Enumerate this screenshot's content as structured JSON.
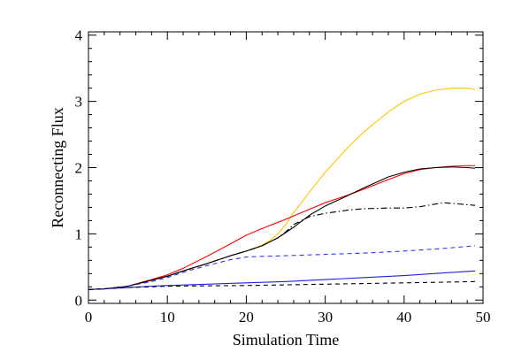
{
  "chart_data": {
    "type": "line",
    "xlabel": "Simulation Time",
    "ylabel": "Reconnecting Flux",
    "xlim": [
      0,
      50
    ],
    "ylim": [
      -0.05,
      4.05
    ],
    "x_ticks": [
      0,
      10,
      20,
      30,
      40,
      50
    ],
    "y_ticks": [
      0,
      1,
      2,
      3,
      4
    ],
    "x_minor_step": 2,
    "y_minor_step": 0.2,
    "grid": false,
    "legend": "none",
    "series": [
      {
        "color": "#FFC400",
        "dash": "solid",
        "x": [
          0,
          2,
          5,
          8,
          10,
          12,
          15,
          18,
          20,
          22,
          23,
          24,
          25,
          26,
          28,
          30,
          33,
          35,
          38,
          40,
          42,
          44,
          46,
          48,
          49
        ],
        "y": [
          0.16,
          0.17,
          0.21,
          0.3,
          0.36,
          0.44,
          0.55,
          0.67,
          0.74,
          0.83,
          0.9,
          1.0,
          1.14,
          1.32,
          1.63,
          1.93,
          2.32,
          2.55,
          2.84,
          3.0,
          3.11,
          3.17,
          3.2,
          3.2,
          3.18
        ]
      },
      {
        "color": "#FF0000",
        "dash": "solid",
        "x": [
          0,
          2,
          5,
          8,
          10,
          12,
          15,
          18,
          20,
          22,
          25,
          28,
          30,
          33,
          35,
          38,
          40,
          42,
          44,
          46,
          48,
          49
        ],
        "y": [
          0.16,
          0.17,
          0.21,
          0.31,
          0.38,
          0.48,
          0.66,
          0.85,
          0.98,
          1.08,
          1.22,
          1.37,
          1.47,
          1.59,
          1.68,
          1.82,
          1.91,
          1.97,
          2.0,
          2.02,
          2.03,
          2.03
        ]
      },
      {
        "color": "#000000",
        "dash": "solid",
        "x": [
          0,
          2,
          5,
          8,
          10,
          12,
          15,
          18,
          20,
          22,
          24,
          26,
          28,
          30,
          32,
          35,
          38,
          40,
          42,
          44,
          46,
          48,
          49
        ],
        "y": [
          0.16,
          0.17,
          0.21,
          0.3,
          0.36,
          0.44,
          0.55,
          0.67,
          0.74,
          0.82,
          0.94,
          1.1,
          1.28,
          1.42,
          1.53,
          1.7,
          1.86,
          1.93,
          1.98,
          2.0,
          2.01,
          2.0,
          1.99
        ]
      },
      {
        "color": "#000000",
        "dash": "dashdot",
        "x": [
          0,
          2,
          5,
          8,
          10,
          12,
          15,
          18,
          20,
          22,
          24,
          25,
          26,
          28,
          30,
          33,
          35,
          38,
          40,
          42,
          44,
          45,
          46,
          48,
          49
        ],
        "y": [
          0.16,
          0.17,
          0.21,
          0.3,
          0.36,
          0.44,
          0.55,
          0.67,
          0.74,
          0.82,
          0.94,
          1.03,
          1.14,
          1.26,
          1.31,
          1.36,
          1.38,
          1.39,
          1.39,
          1.41,
          1.45,
          1.47,
          1.46,
          1.44,
          1.43
        ]
      },
      {
        "color": "#3333FF",
        "dash": "dashed",
        "x": [
          0,
          2,
          5,
          8,
          10,
          12,
          15,
          18,
          20,
          22,
          25,
          30,
          35,
          40,
          45,
          49
        ],
        "y": [
          0.16,
          0.17,
          0.21,
          0.28,
          0.34,
          0.42,
          0.52,
          0.61,
          0.65,
          0.66,
          0.67,
          0.69,
          0.71,
          0.74,
          0.78,
          0.82
        ]
      },
      {
        "color": "#2222DD",
        "dash": "solid",
        "x": [
          0,
          2,
          5,
          8,
          10,
          15,
          20,
          25,
          30,
          35,
          40,
          45,
          49
        ],
        "y": [
          0.16,
          0.17,
          0.19,
          0.21,
          0.22,
          0.24,
          0.26,
          0.28,
          0.31,
          0.34,
          0.37,
          0.41,
          0.44
        ]
      },
      {
        "color": "#000000",
        "dash": "dashed",
        "x": [
          0,
          2,
          5,
          8,
          10,
          15,
          20,
          25,
          30,
          35,
          40,
          45,
          49
        ],
        "y": [
          0.16,
          0.17,
          0.19,
          0.2,
          0.21,
          0.215,
          0.22,
          0.23,
          0.24,
          0.25,
          0.26,
          0.27,
          0.28
        ]
      }
    ]
  }
}
